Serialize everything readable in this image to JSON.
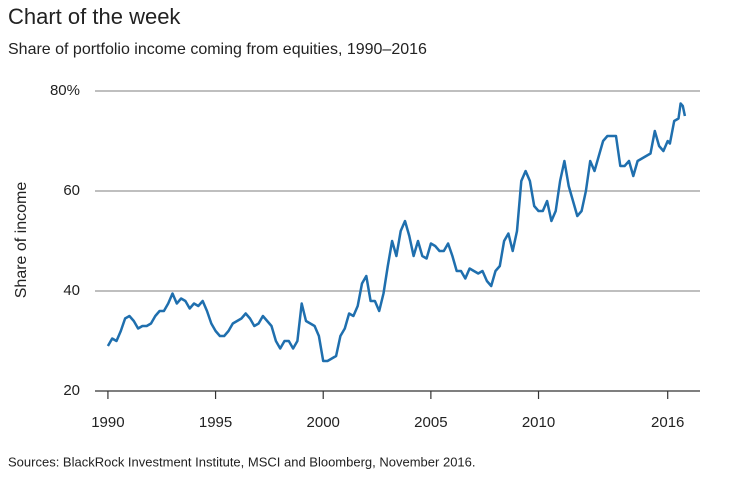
{
  "chart_data": {
    "type": "line",
    "title": "Chart of the week",
    "subtitle": "Share of portfolio income coming from equities, 1990–2016",
    "ylabel": "Share of income",
    "source": "Sources: BlackRock Investment Institute, MSCI and Bloomberg, November 2016.",
    "color": "#1f6fae",
    "grid": true,
    "xlim": [
      1989.4,
      2017.5
    ],
    "xticks": [
      1990,
      1995,
      2000,
      2005,
      2010,
      2016
    ],
    "ylim": [
      20,
      80
    ],
    "yticks": [
      20,
      40,
      60,
      {
        "value": 80,
        "label": "80%"
      }
    ],
    "x": [
      1990.0,
      1990.2,
      1990.4,
      1990.6,
      1990.8,
      1991.0,
      1991.2,
      1991.4,
      1991.6,
      1991.8,
      1992.0,
      1992.2,
      1992.4,
      1992.6,
      1992.8,
      1993.0,
      1993.2,
      1993.4,
      1993.6,
      1993.8,
      1994.0,
      1994.2,
      1994.4,
      1994.6,
      1994.8,
      1995.0,
      1995.2,
      1995.4,
      1995.6,
      1995.8,
      1996.0,
      1996.2,
      1996.4,
      1996.6,
      1996.8,
      1997.0,
      1997.2,
      1997.4,
      1997.6,
      1997.8,
      1998.0,
      1998.2,
      1998.4,
      1998.6,
      1998.8,
      1999.0,
      1999.2,
      1999.4,
      1999.6,
      1999.8,
      2000.0,
      2000.2,
      2000.4,
      2000.6,
      2000.8,
      2001.0,
      2001.2,
      2001.4,
      2001.6,
      2001.8,
      2002.0,
      2002.2,
      2002.4,
      2002.6,
      2002.8,
      2003.0,
      2003.2,
      2003.4,
      2003.6,
      2003.8,
      2004.0,
      2004.2,
      2004.4,
      2004.6,
      2004.8,
      2005.0,
      2005.2,
      2005.4,
      2005.6,
      2005.8,
      2006.0,
      2006.2,
      2006.4,
      2006.6,
      2006.8,
      2007.0,
      2007.2,
      2007.4,
      2007.6,
      2007.8,
      2008.0,
      2008.2,
      2008.4,
      2008.6,
      2008.8,
      2009.0,
      2009.2,
      2009.4,
      2009.6,
      2009.8,
      2010.0,
      2010.2,
      2010.4,
      2010.6,
      2010.8,
      2011.0,
      2011.2,
      2011.4,
      2011.6,
      2011.8,
      2012.0,
      2012.2,
      2012.4,
      2012.6,
      2012.8,
      2013.0,
      2013.2,
      2013.4,
      2013.6,
      2013.8,
      2014.0,
      2014.2,
      2014.4,
      2014.6,
      2014.8,
      2015.0,
      2015.2,
      2015.4,
      2015.6,
      2015.8,
      2016.0,
      2016.1,
      2016.3,
      2016.5,
      2016.6,
      2016.7,
      2016.8
    ],
    "values": [
      29,
      30.5,
      30,
      32,
      34.5,
      35,
      34,
      32.5,
      33,
      33,
      33.5,
      35,
      36,
      36,
      37.5,
      39.5,
      37.5,
      38.5,
      38,
      36.5,
      37.5,
      37,
      38,
      36,
      33.5,
      32,
      31,
      31,
      32,
      33.5,
      34,
      34.5,
      35.5,
      34.5,
      33,
      33.5,
      35,
      34,
      33,
      30,
      28.5,
      30,
      30,
      28.5,
      30,
      37.5,
      34,
      33.5,
      33,
      31,
      26,
      26,
      26.5,
      27,
      31,
      32.5,
      35.5,
      35,
      37,
      41.5,
      43,
      38,
      38,
      36,
      39.5,
      45,
      50,
      47,
      52,
      54,
      51,
      47,
      50,
      47,
      46.5,
      49.5,
      49,
      48,
      48,
      49.5,
      47,
      44,
      44,
      42.5,
      44.5,
      44,
      43.5,
      44,
      42,
      41,
      44,
      45,
      50,
      51.5,
      48,
      52,
      62,
      64,
      62,
      57,
      56,
      56,
      58,
      54,
      56,
      62,
      66,
      61,
      58,
      55,
      56,
      60,
      66,
      64,
      67,
      70,
      71,
      71,
      71,
      65,
      65,
      66,
      63,
      66,
      66.5,
      67,
      67.5,
      72,
      69,
      68,
      70,
      69.5,
      74,
      74.5,
      77.5,
      77,
      75
    ]
  }
}
